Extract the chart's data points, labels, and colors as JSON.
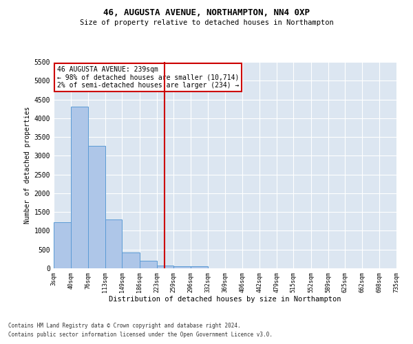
{
  "title1": "46, AUGUSTA AVENUE, NORTHAMPTON, NN4 0XP",
  "title2": "Size of property relative to detached houses in Northampton",
  "xlabel": "Distribution of detached houses by size in Northampton",
  "ylabel": "Number of detached properties",
  "bin_edges": [
    3,
    40,
    76,
    113,
    149,
    186,
    223,
    259,
    296,
    332,
    369,
    406,
    442,
    479,
    515,
    552,
    589,
    625,
    662,
    698,
    735
  ],
  "bar_heights": [
    1230,
    4300,
    3270,
    1300,
    430,
    200,
    70,
    50,
    60,
    0,
    0,
    0,
    0,
    0,
    0,
    0,
    0,
    0,
    0,
    0
  ],
  "bar_color": "#aec6e8",
  "bar_edge_color": "#5b9bd5",
  "property_size": 239,
  "vline_color": "#cc0000",
  "annotation_text": "46 AUGUSTA AVENUE: 239sqm\n← 98% of detached houses are smaller (10,714)\n2% of semi-detached houses are larger (234) →",
  "annotation_box_color": "#ffffff",
  "annotation_box_edge": "#cc0000",
  "ylim": [
    0,
    5500
  ],
  "yticks": [
    0,
    500,
    1000,
    1500,
    2000,
    2500,
    3000,
    3500,
    4000,
    4500,
    5000,
    5500
  ],
  "plot_bg_color": "#dce6f1",
  "footer1": "Contains HM Land Registry data © Crown copyright and database right 2024.",
  "footer2": "Contains public sector information licensed under the Open Government Licence v3.0."
}
